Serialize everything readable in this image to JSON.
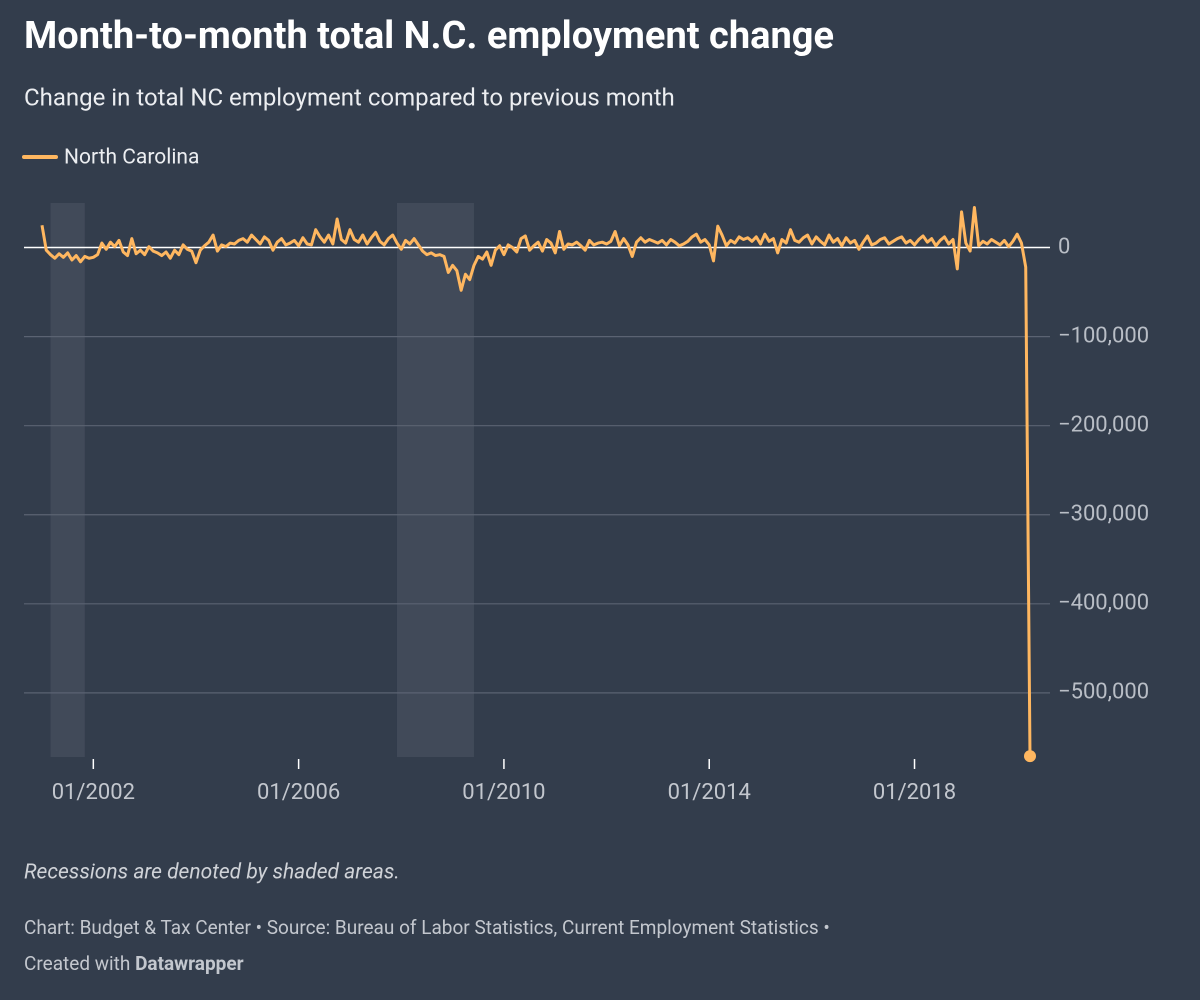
{
  "chart_data": {
    "type": "line",
    "title": "Month-to-month total N.C. employment change",
    "subtitle": "Change in total NC employment compared to previous month",
    "notes": "Recessions are denoted by shaded areas.",
    "credit": "Chart: Budget & Tax Center • Source: Bureau of Labor Statistics, Current Employment Statistics •",
    "created_with": "Created with",
    "tool": "Datawrapper",
    "x": [
      "2001-01",
      "2001-02",
      "2001-03",
      "2001-04",
      "2001-05",
      "2001-06",
      "2001-07",
      "2001-08",
      "2001-09",
      "2001-10",
      "2001-11",
      "2001-12",
      "2002-01",
      "2002-02",
      "2002-03",
      "2002-04",
      "2002-05",
      "2002-06",
      "2002-07",
      "2002-08",
      "2002-09",
      "2002-10",
      "2002-11",
      "2002-12",
      "2003-01",
      "2003-02",
      "2003-03",
      "2003-04",
      "2003-05",
      "2003-06",
      "2003-07",
      "2003-08",
      "2003-09",
      "2003-10",
      "2003-11",
      "2003-12",
      "2004-01",
      "2004-02",
      "2004-03",
      "2004-04",
      "2004-05",
      "2004-06",
      "2004-07",
      "2004-08",
      "2004-09",
      "2004-10",
      "2004-11",
      "2004-12",
      "2005-01",
      "2005-02",
      "2005-03",
      "2005-04",
      "2005-05",
      "2005-06",
      "2005-07",
      "2005-08",
      "2005-09",
      "2005-10",
      "2005-11",
      "2005-12",
      "2006-01",
      "2006-02",
      "2006-03",
      "2006-04",
      "2006-05",
      "2006-06",
      "2006-07",
      "2006-08",
      "2006-09",
      "2006-10",
      "2006-11",
      "2006-12",
      "2007-01",
      "2007-02",
      "2007-03",
      "2007-04",
      "2007-05",
      "2007-06",
      "2007-07",
      "2007-08",
      "2007-09",
      "2007-10",
      "2007-11",
      "2007-12",
      "2008-01",
      "2008-02",
      "2008-03",
      "2008-04",
      "2008-05",
      "2008-06",
      "2008-07",
      "2008-08",
      "2008-09",
      "2008-10",
      "2008-11",
      "2008-12",
      "2009-01",
      "2009-02",
      "2009-03",
      "2009-04",
      "2009-05",
      "2009-06",
      "2009-07",
      "2009-08",
      "2009-09",
      "2009-10",
      "2009-11",
      "2009-12",
      "2010-01",
      "2010-02",
      "2010-03",
      "2010-04",
      "2010-05",
      "2010-06",
      "2010-07",
      "2010-08",
      "2010-09",
      "2010-10",
      "2010-11",
      "2010-12",
      "2011-01",
      "2011-02",
      "2011-03",
      "2011-04",
      "2011-05",
      "2011-06",
      "2011-07",
      "2011-08",
      "2011-09",
      "2011-10",
      "2011-11",
      "2011-12",
      "2012-01",
      "2012-02",
      "2012-03",
      "2012-04",
      "2012-05",
      "2012-06",
      "2012-07",
      "2012-08",
      "2012-09",
      "2012-10",
      "2012-11",
      "2012-12",
      "2013-01",
      "2013-02",
      "2013-03",
      "2013-04",
      "2013-05",
      "2013-06",
      "2013-07",
      "2013-08",
      "2013-09",
      "2013-10",
      "2013-11",
      "2013-12",
      "2014-01",
      "2014-02",
      "2014-03",
      "2014-04",
      "2014-05",
      "2014-06",
      "2014-07",
      "2014-08",
      "2014-09",
      "2014-10",
      "2014-11",
      "2014-12",
      "2015-01",
      "2015-02",
      "2015-03",
      "2015-04",
      "2015-05",
      "2015-06",
      "2015-07",
      "2015-08",
      "2015-09",
      "2015-10",
      "2015-11",
      "2015-12",
      "2016-01",
      "2016-02",
      "2016-03",
      "2016-04",
      "2016-05",
      "2016-06",
      "2016-07",
      "2016-08",
      "2016-09",
      "2016-10",
      "2016-11",
      "2016-12",
      "2017-01",
      "2017-02",
      "2017-03",
      "2017-04",
      "2017-05",
      "2017-06",
      "2017-07",
      "2017-08",
      "2017-09",
      "2017-10",
      "2017-11",
      "2017-12",
      "2018-01",
      "2018-02",
      "2018-03",
      "2018-04",
      "2018-05",
      "2018-06",
      "2018-07",
      "2018-08",
      "2018-09",
      "2018-10",
      "2018-11",
      "2018-12",
      "2019-01",
      "2019-02",
      "2019-03",
      "2019-04",
      "2019-05",
      "2019-06",
      "2019-07",
      "2019-08",
      "2019-09",
      "2019-10",
      "2019-11",
      "2019-12",
      "2020-01",
      "2020-02",
      "2020-03",
      "2020-04"
    ],
    "series": [
      {
        "name": "North Carolina",
        "color": "#ffb760",
        "values": [
          25000,
          -3000,
          -8000,
          -12000,
          -7000,
          -11000,
          -6000,
          -14000,
          -9000,
          -16000,
          -10000,
          -12000,
          -11000,
          -8000,
          5000,
          -2000,
          6000,
          1000,
          8000,
          -5000,
          -9000,
          10000,
          -7000,
          -3000,
          -8000,
          1000,
          -4000,
          -6000,
          -9000,
          -5000,
          -12000,
          -3000,
          -8000,
          3000,
          -2000,
          -4000,
          -17000,
          -3000,
          2000,
          6000,
          14000,
          -4000,
          3000,
          1000,
          5000,
          4000,
          8000,
          10000,
          6000,
          14000,
          9000,
          4000,
          12000,
          8000,
          -3000,
          6000,
          10000,
          3000,
          5000,
          8000,
          2000,
          11000,
          4000,
          3000,
          20000,
          12000,
          6000,
          14000,
          4000,
          32000,
          9000,
          5000,
          20000,
          9000,
          6000,
          14000,
          4000,
          11000,
          17000,
          7000,
          3000,
          10000,
          14000,
          5000,
          -2000,
          8000,
          4000,
          10000,
          3000,
          -4000,
          -8000,
          -6000,
          -9000,
          -8000,
          -10000,
          -28000,
          -20000,
          -26000,
          -48000,
          -30000,
          -36000,
          -20000,
          -10000,
          -13000,
          -5000,
          -20000,
          -3000,
          2000,
          -8000,
          3000,
          0,
          -5000,
          10000,
          13000,
          -3000,
          2000,
          6000,
          -4000,
          9000,
          5000,
          -6000,
          18000,
          -2000,
          4000,
          3000,
          6000,
          2000,
          -3000,
          8000,
          3000,
          5000,
          6000,
          4000,
          7000,
          18000,
          2000,
          10000,
          3000,
          -10000,
          6000,
          11000,
          6000,
          9000,
          7000,
          5000,
          8000,
          3000,
          9000,
          6000,
          2000,
          4000,
          7000,
          12000,
          15000,
          6000,
          9000,
          3000,
          -15000,
          24000,
          14000,
          2000,
          8000,
          5000,
          12000,
          9000,
          11000,
          7000,
          12000,
          4000,
          15000,
          7000,
          10000,
          -6000,
          9000,
          5000,
          20000,
          8000,
          6000,
          11000,
          14000,
          4000,
          12000,
          7000,
          3000,
          14000,
          6000,
          10000,
          2000,
          11000,
          5000,
          8000,
          -2000,
          6000,
          13000,
          3000,
          5000,
          9000,
          11000,
          4000,
          7000,
          10000,
          12000,
          5000,
          8000,
          3000,
          9000,
          13000,
          6000,
          10000,
          2000,
          8000,
          12000,
          4000,
          9000,
          -24000,
          40000,
          5000,
          -4000,
          45000,
          2000,
          7000,
          4000,
          9000,
          6000,
          3000,
          8000,
          1000,
          7000,
          15000,
          5000,
          -22000,
          -571000
        ]
      }
    ],
    "recessions": [
      {
        "start": "2001-03",
        "end": "2001-11"
      },
      {
        "start": "2007-12",
        "end": "2009-06"
      }
    ],
    "xlim": [
      "2001-01",
      "2020-04"
    ],
    "xticks": [
      {
        "value": "2002-01",
        "label": "01/2002"
      },
      {
        "value": "2006-01",
        "label": "01/2006"
      },
      {
        "value": "2010-01",
        "label": "01/2010"
      },
      {
        "value": "2014-01",
        "label": "01/2014"
      },
      {
        "value": "2018-01",
        "label": "01/2018"
      }
    ],
    "ylim": [
      -572000,
      50000
    ],
    "yticks": [
      0,
      {
        "value": -100000,
        "label": "−100,000"
      },
      {
        "value": -200000,
        "label": "−200,000"
      },
      {
        "value": -300000,
        "label": "−300,000"
      },
      {
        "value": -400000,
        "label": "−400,000"
      },
      {
        "value": -500000,
        "label": "−500,000"
      }
    ],
    "grid": true
  }
}
